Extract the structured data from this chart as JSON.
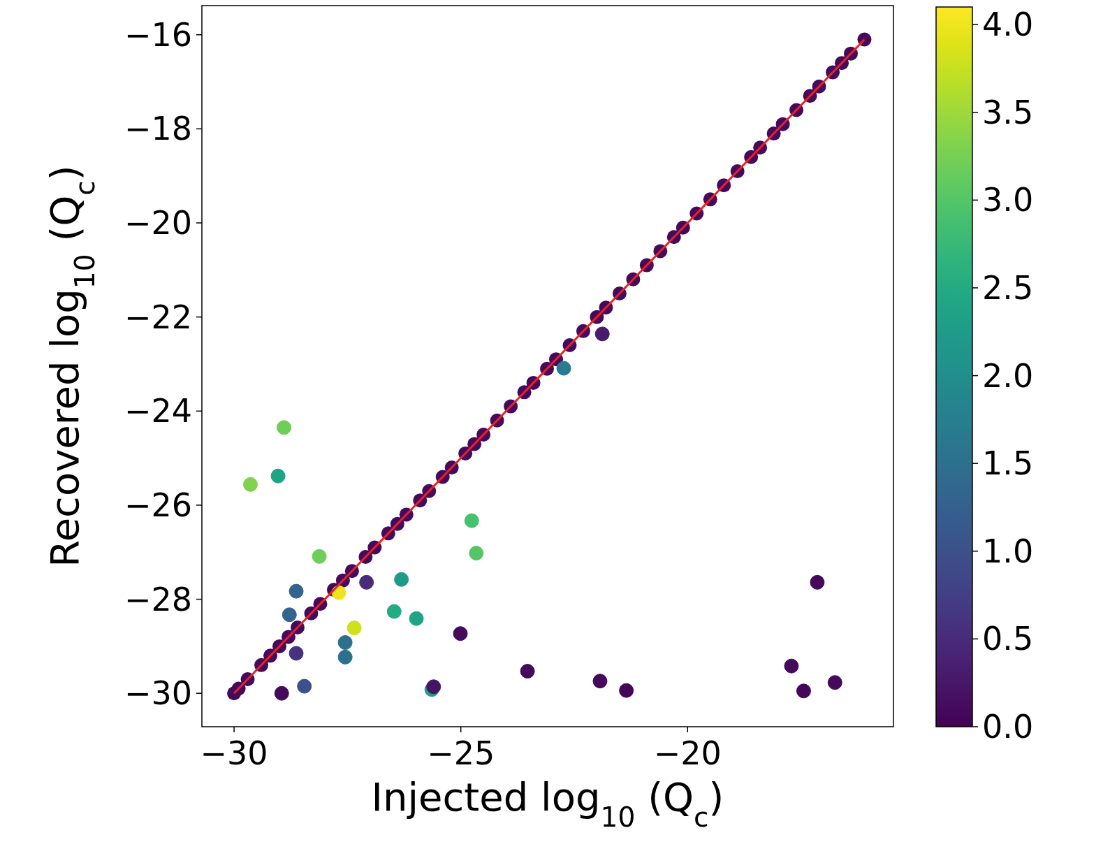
{
  "chart_data": {
    "type": "scatter",
    "xlabel": "Injected log$_{10}$ (Q$_{c}$)",
    "ylabel": "Recovered log$_{10}$ (Q$_{c}$)",
    "xlim": [
      -30.71,
      -15.46
    ],
    "ylim": [
      -30.71,
      -15.38
    ],
    "xticks": [
      {
        "value": -30,
        "label": "−30"
      },
      {
        "value": -25,
        "label": "−25"
      },
      {
        "value": -20,
        "label": "−20"
      }
    ],
    "yticks": [
      {
        "value": -30,
        "label": "−30"
      },
      {
        "value": -28,
        "label": "−28"
      },
      {
        "value": -26,
        "label": "−26"
      },
      {
        "value": -24,
        "label": "−24"
      },
      {
        "value": -22,
        "label": "−22"
      },
      {
        "value": -20,
        "label": "−20"
      },
      {
        "value": -18,
        "label": "−18"
      },
      {
        "value": -16,
        "label": "−16"
      }
    ],
    "clim": [
      0,
      4.1
    ],
    "cticks": [
      {
        "value": 0,
        "label": "0.0"
      },
      {
        "value": 0.5,
        "label": "0.5"
      },
      {
        "value": 1,
        "label": "1.0"
      },
      {
        "value": 1.5,
        "label": "1.5"
      },
      {
        "value": 2,
        "label": "2.0"
      },
      {
        "value": 2.5,
        "label": "2.5"
      },
      {
        "value": 3,
        "label": "3.0"
      },
      {
        "value": 3.5,
        "label": "3.5"
      },
      {
        "value": 4,
        "label": "4.0"
      }
    ],
    "marker": "circle",
    "series": [
      {
        "x": [
          -30,
          -29.9,
          -29.7,
          -29.4,
          -29.2,
          -29.0,
          -28.8,
          -28.6,
          -28.3,
          -28.1,
          -27.8,
          -27.6,
          -27.4,
          -27.1,
          -26.9,
          -26.6,
          -26.4,
          -26.2,
          -25.9,
          -25.7,
          -25.4,
          -25.2,
          -24.9,
          -24.7,
          -24.5,
          -24.2,
          -23.9,
          -23.6,
          -23.4,
          -23.1,
          -22.9,
          -22.6,
          -22.3,
          -22.0,
          -21.8,
          -21.5,
          -21.2,
          -20.9,
          -20.6,
          -20.3,
          -20.1,
          -19.8,
          -19.5,
          -19.2,
          -18.9,
          -18.6,
          -18.4,
          -18.1,
          -17.9,
          -17.6,
          -17.3,
          -17.1,
          -16.8,
          -16.6,
          -16.4,
          -16.1
        ],
        "values": [
          -30,
          -29.9,
          -29.7,
          -29.4,
          -29.2,
          -29.0,
          -28.8,
          -28.6,
          -28.3,
          -28.1,
          -27.8,
          -27.6,
          -27.4,
          -27.1,
          -26.9,
          -26.6,
          -26.4,
          -26.2,
          -25.9,
          -25.7,
          -25.4,
          -25.2,
          -24.9,
          -24.7,
          -24.5,
          -24.2,
          -23.9,
          -23.6,
          -23.4,
          -23.1,
          -22.9,
          -22.6,
          -22.3,
          -22.0,
          -21.8,
          -21.5,
          -21.2,
          -20.9,
          -20.6,
          -20.3,
          -20.1,
          -19.8,
          -19.5,
          -19.2,
          -18.9,
          -18.6,
          -18.4,
          -18.1,
          -17.9,
          -17.6,
          -17.3,
          -17.1,
          -16.8,
          -16.6,
          -16.4,
          -16.1
        ],
        "cvalues": [
          0.1,
          0.1,
          0.1,
          0.1,
          0.1,
          0.1,
          0.1,
          0.1,
          0.1,
          0.1,
          0.1,
          0.1,
          0.1,
          0.1,
          0.1,
          0.1,
          0.1,
          0.1,
          0.1,
          0.1,
          0.1,
          0.1,
          0.1,
          0.1,
          0.1,
          0.1,
          0.1,
          0.1,
          0.1,
          0.1,
          0.1,
          0.1,
          0.1,
          0.1,
          0.1,
          0.1,
          0.1,
          0.1,
          0.1,
          0.1,
          0.1,
          0.1,
          0.1,
          0.1,
          0.1,
          0.1,
          0.1,
          0.1,
          0.1,
          0.1,
          0.1,
          0.1,
          0.1,
          0.1,
          0.1,
          0.1
        ]
      },
      {
        "x": [
          -28.9,
          -29.64,
          -29.03,
          -24.76,
          -24.66,
          -28.12,
          -28.63,
          -27.69,
          -27.08,
          -26.31,
          -26.47,
          -25.98,
          -28.78,
          -27.35,
          -27.55,
          -27.55,
          -28.63,
          -25.01,
          -28.95,
          -28.45,
          -25.64,
          -25.6,
          -23.53,
          -21.93,
          -21.35,
          -17.71,
          -17.44,
          -16.75,
          -17.14,
          -21.88,
          -22.73
        ],
        "values": [
          -24.35,
          -25.56,
          -25.38,
          -26.33,
          -27.02,
          -27.09,
          -27.83,
          -27.86,
          -27.64,
          -27.58,
          -28.26,
          -28.41,
          -28.33,
          -28.61,
          -28.92,
          -29.23,
          -29.15,
          -28.73,
          -30.0,
          -29.85,
          -29.92,
          -29.86,
          -29.53,
          -29.74,
          -29.94,
          -29.42,
          -29.95,
          -29.77,
          -27.64,
          -22.36,
          -23.09
        ],
        "colors": [
          "#70cd57",
          "#7dd250",
          "#20a386",
          "#47c16e",
          "#56c667",
          "#70cd57",
          "#336390",
          "#efe51c",
          "#472c7a",
          "#1f998a",
          "#25ab82",
          "#20a386",
          "#336390",
          "#cde11d",
          "#2d708e",
          "#2d708e",
          "#46337f",
          "#450a5c",
          "#450a5c",
          "#3c508b",
          "#1f9e89",
          "#471365",
          "#450a5c",
          "#450a5c",
          "#440558",
          "#450a5c",
          "#440558",
          "#450a5c",
          "#450a5c",
          "#481b6d",
          "#277b8e"
        ],
        "cvalues": [
          3.2,
          3.3,
          2.4,
          2.9,
          3.0,
          3.2,
          1.3,
          4.0,
          0.5,
          2.2,
          2.5,
          2.4,
          1.3,
          3.8,
          1.5,
          1.5,
          0.6,
          0.1,
          0.1,
          1.0,
          2.3,
          0.2,
          0.1,
          0.1,
          0.05,
          0.1,
          0.05,
          0.1,
          0.1,
          0.3,
          1.7
        ]
      },
      {
        "type": "line",
        "color": "#ee2020",
        "x": [
          -30,
          -16.1
        ],
        "values": [
          -30,
          -16.1
        ],
        "marker": "none"
      }
    ]
  }
}
